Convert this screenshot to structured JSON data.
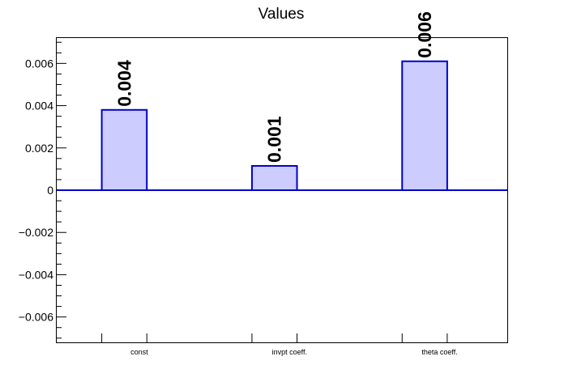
{
  "chart_data": {
    "type": "bar",
    "title": "Values",
    "categories": [
      "const",
      "invpt coeff.",
      "theta coeff."
    ],
    "values": [
      0.0038,
      0.00115,
      0.0061
    ],
    "data_labels": [
      "0.004",
      "0.001",
      "0.006"
    ],
    "yticks": [
      -0.006,
      -0.004,
      -0.002,
      0,
      0.002,
      0.004,
      0.006
    ],
    "ytick_labels": [
      "−0.006",
      "−0.004",
      "−0.002",
      "0",
      "0.002",
      "0.004",
      "0.006"
    ],
    "ylim": [
      -0.0072,
      0.0072
    ],
    "xlabel": "",
    "ylabel": "",
    "grid": false,
    "colors": {
      "bar_fill": "#ccccff",
      "bar_stroke": "#0000cc",
      "axis": "#000000"
    }
  }
}
